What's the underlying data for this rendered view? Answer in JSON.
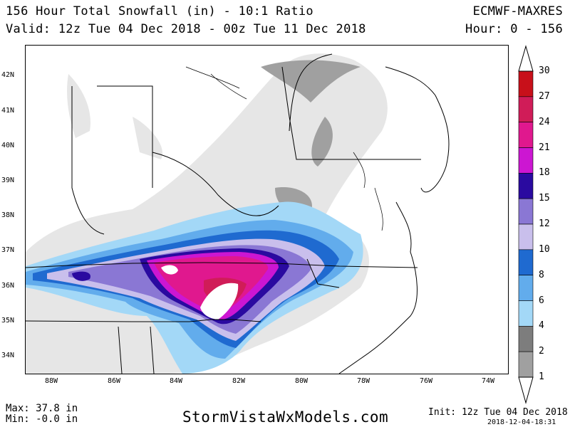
{
  "header": {
    "title_line1": "156 Hour Total Snowfall (in) - 10:1 Ratio",
    "title_line2": "Valid: 12z Tue 04 Dec 2018 - 00z Tue 11 Dec 2018",
    "model": "ECMWF-MAXRES",
    "hours": "Hour: 0 - 156"
  },
  "map": {
    "lat_labels": [
      "42N",
      "41N",
      "40N",
      "39N",
      "38N",
      "37N",
      "36N",
      "35N",
      "34N"
    ],
    "lon_labels": [
      "88W",
      "86W",
      "84W",
      "82W",
      "80W",
      "78W",
      "76W",
      "74W"
    ]
  },
  "colorbar": {
    "levels": [
      "1",
      "2",
      "4",
      "6",
      "8",
      "10",
      "12",
      "15",
      "18",
      "21",
      "24",
      "27",
      "30"
    ],
    "colors": [
      "#e6e6e6",
      "#a0a0a0",
      "#7d7d7d",
      "#a3d8f7",
      "#62acec",
      "#1f6ad0",
      "#c9bfec",
      "#8a77d4",
      "#2a0aa0",
      "#cc16d2",
      "#e0188e",
      "#d01c58",
      "#c8101a"
    ]
  },
  "footer": {
    "max": "Max: 37.8 in",
    "min": "Min: -0.0 in",
    "site": "StormVistaWxModels.com",
    "init": "Init: 12z Tue 04 Dec 2018",
    "timestamp": "2018-12-04-18:31"
  }
}
